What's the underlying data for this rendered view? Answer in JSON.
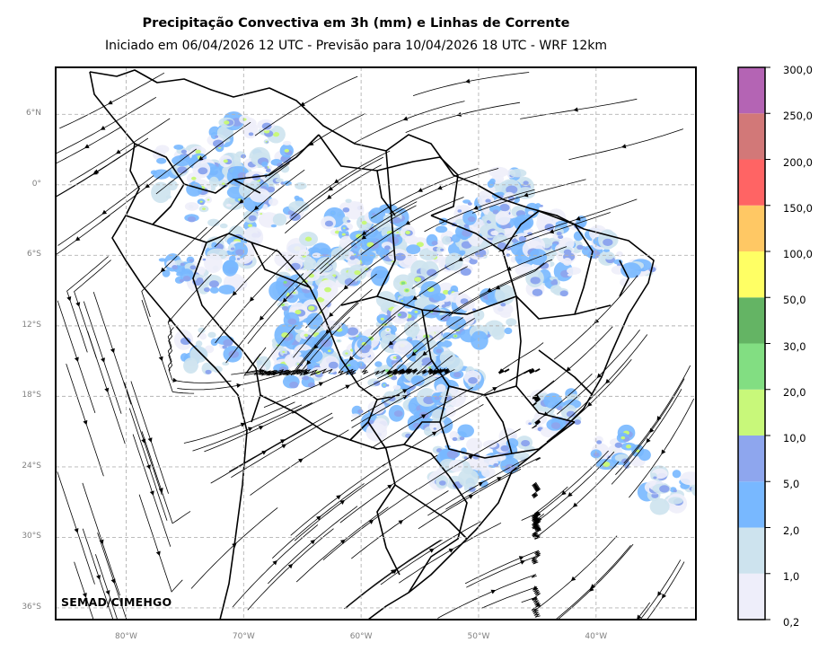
{
  "title": "Precipitação Convectiva em 3h (mm) e Linhas de Corrente",
  "subtitle": "Iniciado em 06/04/2026 12 UTC - Previsão para 10/04/2026 18 UTC - WRF 12km",
  "credit": "SEMAD/CIMEHGO",
  "map": {
    "lon_range": [
      -86,
      -31.5
    ],
    "lat_range": [
      -37,
      10
    ],
    "grid": true,
    "lat_labels": [
      "6°N",
      "0°",
      "6°S",
      "12°S",
      "18°S",
      "24°S",
      "30°S",
      "36°S"
    ],
    "lat_values": [
      6,
      0,
      -6,
      -12,
      -18,
      -24,
      -30,
      -36
    ],
    "lon_labels": [
      "80°W",
      "70°W",
      "60°W",
      "50°W",
      "40°W"
    ],
    "lon_values": [
      -80,
      -70,
      -60,
      -50,
      -40
    ]
  },
  "colorbar": {
    "labels": [
      "0,2",
      "1,0",
      "2,0",
      "5,0",
      "10,0",
      "20,0",
      "30,0",
      "50,0",
      "100,0",
      "150,0",
      "200,0",
      "250,0",
      "300,0"
    ],
    "colors": [
      "#eeeefa",
      "#cde3ee",
      "#78b8ff",
      "#8ea6ee",
      "#c8f87a",
      "#82de82",
      "#64b464",
      "#ffff64",
      "#ffc864",
      "#ff6464",
      "#d27878",
      "#b464b4"
    ]
  }
}
